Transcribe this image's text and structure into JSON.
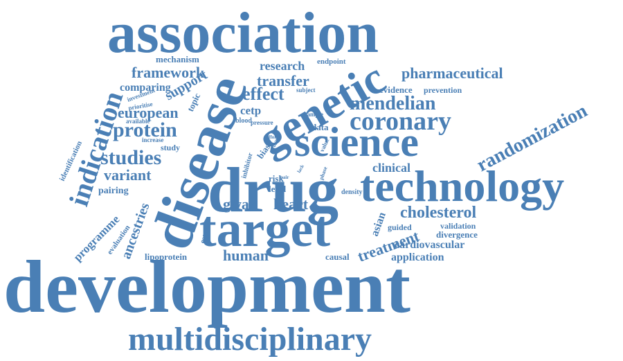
{
  "color": "#4a7fb5",
  "words": [
    "association",
    "disease",
    "genetic",
    "drug",
    "science",
    "technology",
    "target",
    "development",
    "multidisciplinary",
    "indication",
    "coronary",
    "randomization",
    "mendelian",
    "pharmaceutical",
    "protein",
    "studies",
    "variant",
    "european",
    "framework",
    "comparing",
    "support",
    "topic",
    "mechanism",
    "research",
    "transfer",
    "effect",
    "endpoint",
    "evidence",
    "prevention",
    "cetp",
    "subject",
    "pressure",
    "blood",
    "sample",
    "data",
    "increase",
    "study",
    "effort",
    "bias",
    "inhibitor",
    "value",
    "phase",
    "risk",
    "level",
    "pair",
    "density",
    "clinical",
    "cholesterol",
    "asian",
    "guided",
    "validation",
    "divergence",
    "cardiovascular",
    "treatment",
    "application",
    "causal",
    "human",
    "gwas",
    "heart",
    "ester",
    "lipoprotein",
    "ancestries",
    "evaluation",
    "programme",
    "pairing",
    "identification",
    "available",
    "prioritise",
    "investment",
    "utility",
    "lack"
  ]
}
